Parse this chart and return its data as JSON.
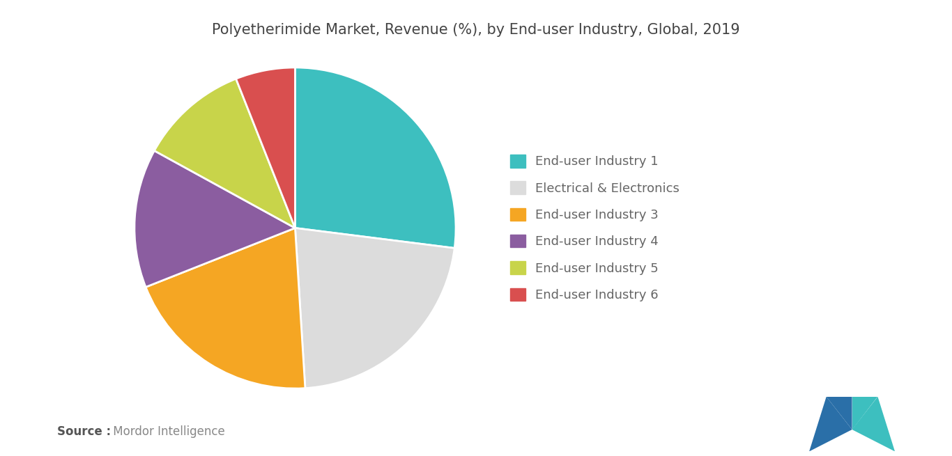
{
  "title": "Polyetherimide Market, Revenue (%), by End-user Industry, Global, 2019",
  "title_fontsize": 15,
  "title_color": "#444444",
  "background_color": "#ffffff",
  "labels": [
    "End-user Industry 1",
    "Electrical & Electronics",
    "End-user Industry 3",
    "End-user Industry 4",
    "End-user Industry 5",
    "End-user Industry 6"
  ],
  "values": [
    27,
    22,
    20,
    14,
    11,
    6
  ],
  "colors": [
    "#3DBFBF",
    "#DCDCDC",
    "#F5A623",
    "#8B5DA0",
    "#C8D44A",
    "#D94F4F"
  ],
  "startangle": 90,
  "source_bold": "Source :",
  "source_normal": " Mordor Intelligence",
  "source_fontsize": 12,
  "legend_fontsize": 13,
  "legend_text_color": "#666666",
  "wedge_edge_color": "#ffffff",
  "wedge_edge_width": 2.0
}
